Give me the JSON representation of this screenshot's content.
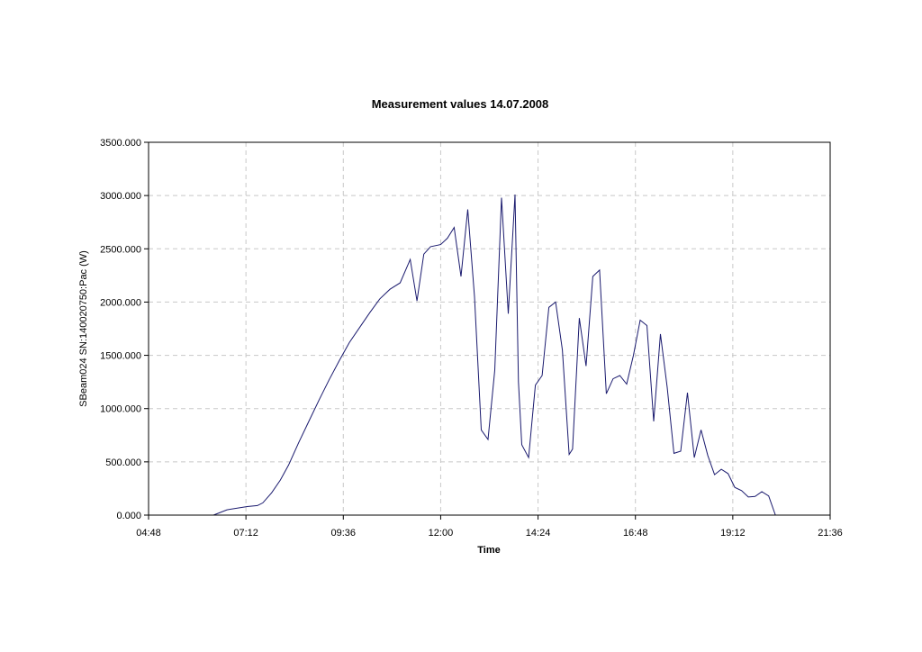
{
  "chart_data": {
    "type": "line",
    "title": "Measurement values 14.07.2008",
    "xlabel": "Time",
    "ylabel": "SBeam024 SN:140020750:Pac (W)",
    "xlim": [
      "04:48",
      "21:36"
    ],
    "ylim": [
      0,
      3500
    ],
    "x_ticks": [
      "04:48",
      "07:12",
      "09:36",
      "12:00",
      "14:24",
      "16:48",
      "19:12",
      "21:36"
    ],
    "y_ticks": [
      "0.000",
      "500.000",
      "1000.000",
      "1500.000",
      "2000.000",
      "2500.000",
      "3000.000",
      "3500.000"
    ],
    "grid": true,
    "line_color": "#1a1a6e",
    "series": [
      {
        "x": [
          "06:24",
          "06:44",
          "07:14",
          "07:29",
          "07:37",
          "07:50",
          "08:03",
          "08:15",
          "08:30",
          "08:45",
          "09:00",
          "09:15",
          "09:30",
          "09:45",
          "10:00",
          "10:15",
          "10:30",
          "10:45",
          "11:00",
          "11:15",
          "11:25",
          "11:35",
          "11:45",
          "12:00",
          "12:10",
          "12:20",
          "12:30",
          "12:40",
          "12:50",
          "13:00",
          "13:10",
          "13:20",
          "13:30",
          "13:40",
          "13:50",
          "13:55",
          "14:00",
          "14:10",
          "14:20",
          "14:30",
          "14:40",
          "14:50",
          "15:00",
          "15:10",
          "15:15",
          "15:25",
          "15:35",
          "15:45",
          "15:55",
          "16:05",
          "16:15",
          "16:25",
          "16:35",
          "16:45",
          "16:55",
          "17:05",
          "17:15",
          "17:25",
          "17:35",
          "17:45",
          "17:55",
          "18:05",
          "18:15",
          "18:25",
          "18:35",
          "18:45",
          "18:55",
          "19:05",
          "19:15",
          "19:25",
          "19:35",
          "19:45",
          "19:55",
          "20:05",
          "20:15",
          "20:25",
          "20:35"
        ],
        "y": [
          0,
          50,
          80,
          90,
          115,
          210,
          330,
          470,
          680,
          880,
          1080,
          1270,
          1450,
          1620,
          1760,
          1900,
          2030,
          2120,
          2180,
          2400,
          2010,
          2450,
          2520,
          2540,
          2600,
          2700,
          2240,
          2870,
          2050,
          800,
          710,
          1360,
          2980,
          1890,
          3010,
          1250,
          660,
          540,
          1220,
          1310,
          1950,
          2000,
          1550,
          570,
          620,
          1850,
          1400,
          2240,
          2300,
          1140,
          1280,
          1310,
          1230,
          1500,
          1830,
          1780,
          880,
          1700,
          1200,
          580,
          600,
          1150,
          540,
          800,
          560,
          380,
          430,
          390,
          260,
          230,
          170,
          175,
          220,
          180,
          0,
          0,
          0
        ]
      }
    ]
  }
}
